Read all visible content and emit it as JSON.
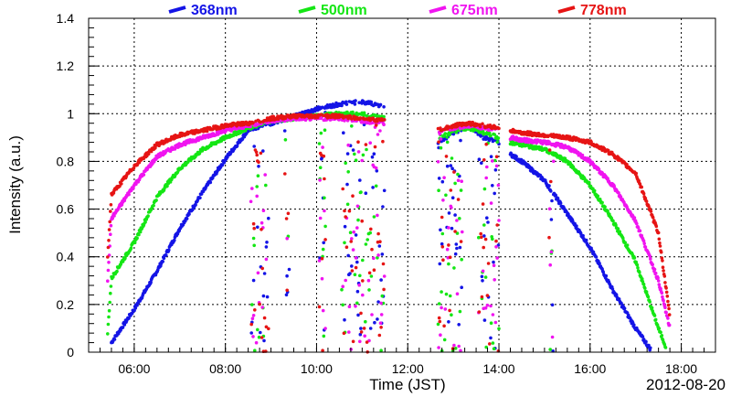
{
  "chart_data": {
    "type": "scatter",
    "xlabel": "Time (JST)",
    "ylabel": "Intensity (a.u.)",
    "date_label": "2012-08-20",
    "xlim": [
      "05:00",
      "18:45"
    ],
    "ylim": [
      0,
      1.4
    ],
    "x_ticks": [
      "06:00",
      "08:00",
      "10:00",
      "12:00",
      "14:00",
      "16:00",
      "18:00"
    ],
    "y_ticks": [
      "0",
      "0.2",
      "0.4",
      "0.6",
      "0.8",
      "1",
      "1.2",
      "1.4"
    ],
    "grid": true,
    "legend_position": "top",
    "series": [
      {
        "name": "368nm",
        "color": "#1414e6",
        "morning": [
          [
            "05:30",
            0.04
          ],
          [
            "06:00",
            0.18
          ],
          [
            "06:30",
            0.34
          ],
          [
            "07:00",
            0.52
          ],
          [
            "07:30",
            0.67
          ],
          [
            "08:00",
            0.81
          ],
          [
            "08:30",
            0.93
          ],
          [
            "09:00",
            0.96
          ],
          [
            "09:30",
            0.99
          ],
          [
            "10:00",
            1.02
          ],
          [
            "10:30",
            1.04
          ],
          [
            "11:00",
            1.05
          ],
          [
            "11:30",
            1.03
          ]
        ],
        "midday": [
          [
            "12:40",
            0.88
          ],
          [
            "13:00",
            0.92
          ],
          [
            "13:20",
            0.95
          ],
          [
            "13:40",
            0.9
          ],
          [
            "14:00",
            0.88
          ]
        ],
        "afternoon": [
          [
            "14:15",
            0.83
          ],
          [
            "14:30",
            0.8
          ],
          [
            "15:00",
            0.72
          ],
          [
            "15:30",
            0.58
          ],
          [
            "16:00",
            0.44
          ],
          [
            "16:30",
            0.26
          ],
          [
            "17:00",
            0.1
          ],
          [
            "17:20",
            0.01
          ]
        ]
      },
      {
        "name": "500nm",
        "color": "#14e614",
        "morning": [
          [
            "05:25",
            0.08
          ],
          [
            "05:30",
            0.31
          ],
          [
            "06:00",
            0.46
          ],
          [
            "06:30",
            0.65
          ],
          [
            "07:00",
            0.77
          ],
          [
            "07:30",
            0.85
          ],
          [
            "08:00",
            0.9
          ],
          [
            "08:30",
            0.94
          ],
          [
            "09:00",
            0.97
          ],
          [
            "09:30",
            0.98
          ],
          [
            "10:00",
            0.99
          ],
          [
            "10:30",
            1.0
          ],
          [
            "11:00",
            1.0
          ],
          [
            "11:30",
            0.98
          ]
        ],
        "midday": [
          [
            "12:40",
            0.9
          ],
          [
            "13:00",
            0.93
          ],
          [
            "13:20",
            0.94
          ],
          [
            "13:40",
            0.92
          ],
          [
            "14:00",
            0.9
          ]
        ],
        "afternoon": [
          [
            "14:15",
            0.88
          ],
          [
            "14:30",
            0.87
          ],
          [
            "15:00",
            0.85
          ],
          [
            "15:30",
            0.8
          ],
          [
            "16:00",
            0.7
          ],
          [
            "16:30",
            0.55
          ],
          [
            "17:00",
            0.38
          ],
          [
            "17:30",
            0.1
          ],
          [
            "17:40",
            0.02
          ]
        ]
      },
      {
        "name": "675nm",
        "color": "#f014f0",
        "morning": [
          [
            "05:25",
            0.3
          ],
          [
            "05:30",
            0.56
          ],
          [
            "06:00",
            0.7
          ],
          [
            "06:30",
            0.82
          ],
          [
            "07:00",
            0.87
          ],
          [
            "07:30",
            0.9
          ],
          [
            "08:00",
            0.93
          ],
          [
            "08:30",
            0.95
          ],
          [
            "09:00",
            0.97
          ],
          [
            "09:30",
            0.98
          ],
          [
            "10:00",
            0.98
          ],
          [
            "10:30",
            0.98
          ],
          [
            "11:00",
            0.97
          ],
          [
            "11:30",
            0.96
          ]
        ],
        "midday": [
          [
            "12:40",
            0.92
          ],
          [
            "13:00",
            0.94
          ],
          [
            "13:20",
            0.95
          ],
          [
            "13:40",
            0.94
          ],
          [
            "14:00",
            0.93
          ]
        ],
        "afternoon": [
          [
            "14:15",
            0.9
          ],
          [
            "14:30",
            0.89
          ],
          [
            "15:00",
            0.88
          ],
          [
            "15:30",
            0.86
          ],
          [
            "16:00",
            0.8
          ],
          [
            "16:30",
            0.7
          ],
          [
            "17:00",
            0.55
          ],
          [
            "17:30",
            0.3
          ],
          [
            "17:45",
            0.1
          ]
        ]
      },
      {
        "name": "778nm",
        "color": "#e61414",
        "morning": [
          [
            "05:25",
            0.4
          ],
          [
            "05:30",
            0.66
          ],
          [
            "06:00",
            0.78
          ],
          [
            "06:30",
            0.87
          ],
          [
            "07:00",
            0.91
          ],
          [
            "07:30",
            0.93
          ],
          [
            "08:00",
            0.95
          ],
          [
            "08:30",
            0.96
          ],
          [
            "09:00",
            0.98
          ],
          [
            "09:30",
            0.99
          ],
          [
            "10:00",
            0.99
          ],
          [
            "10:30",
            0.99
          ],
          [
            "11:00",
            0.98
          ],
          [
            "11:30",
            0.97
          ]
        ],
        "midday": [
          [
            "12:40",
            0.93
          ],
          [
            "13:00",
            0.95
          ],
          [
            "13:20",
            0.96
          ],
          [
            "13:40",
            0.95
          ],
          [
            "14:00",
            0.94
          ]
        ],
        "afternoon": [
          [
            "14:15",
            0.93
          ],
          [
            "14:30",
            0.92
          ],
          [
            "15:00",
            0.91
          ],
          [
            "15:30",
            0.9
          ],
          [
            "16:00",
            0.88
          ],
          [
            "16:30",
            0.83
          ],
          [
            "17:00",
            0.75
          ],
          [
            "17:30",
            0.5
          ],
          [
            "17:45",
            0.15
          ]
        ]
      }
    ]
  }
}
